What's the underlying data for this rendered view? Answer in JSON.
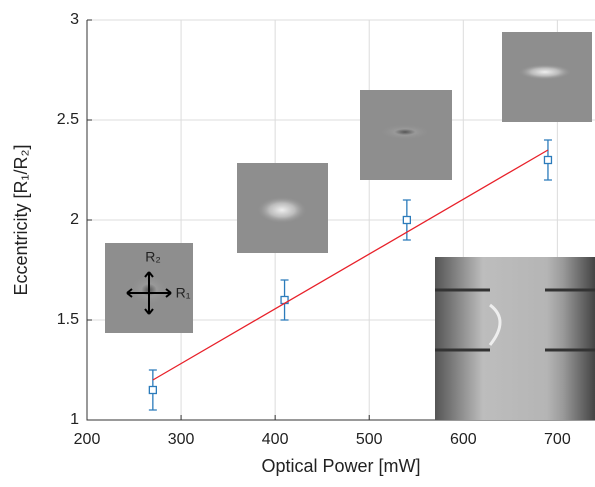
{
  "chart_data": {
    "type": "scatter",
    "x_label": "Optical Power [mW]",
    "y_label": "Eccentricity  [R₁/R₂]",
    "xlim": [
      200,
      740
    ],
    "xticks": [
      200,
      300,
      400,
      500,
      600,
      700
    ],
    "ylim": [
      1,
      3
    ],
    "yticks": [
      1,
      1.5,
      2,
      2.5,
      3
    ],
    "grid": true,
    "series": [
      {
        "type": "errorbar",
        "color": "#2b7bbb",
        "x": [
          270,
          410,
          540,
          690
        ],
        "values": [
          1.15,
          1.6,
          2.0,
          2.3
        ],
        "errors": [
          0.1,
          0.1,
          0.1,
          0.1
        ]
      },
      {
        "type": "line",
        "color": "#e8212a",
        "x": [
          270,
          690
        ],
        "values": [
          1.2,
          2.35
        ]
      }
    ],
    "annotations": [
      "R₂",
      "R₁"
    ]
  }
}
